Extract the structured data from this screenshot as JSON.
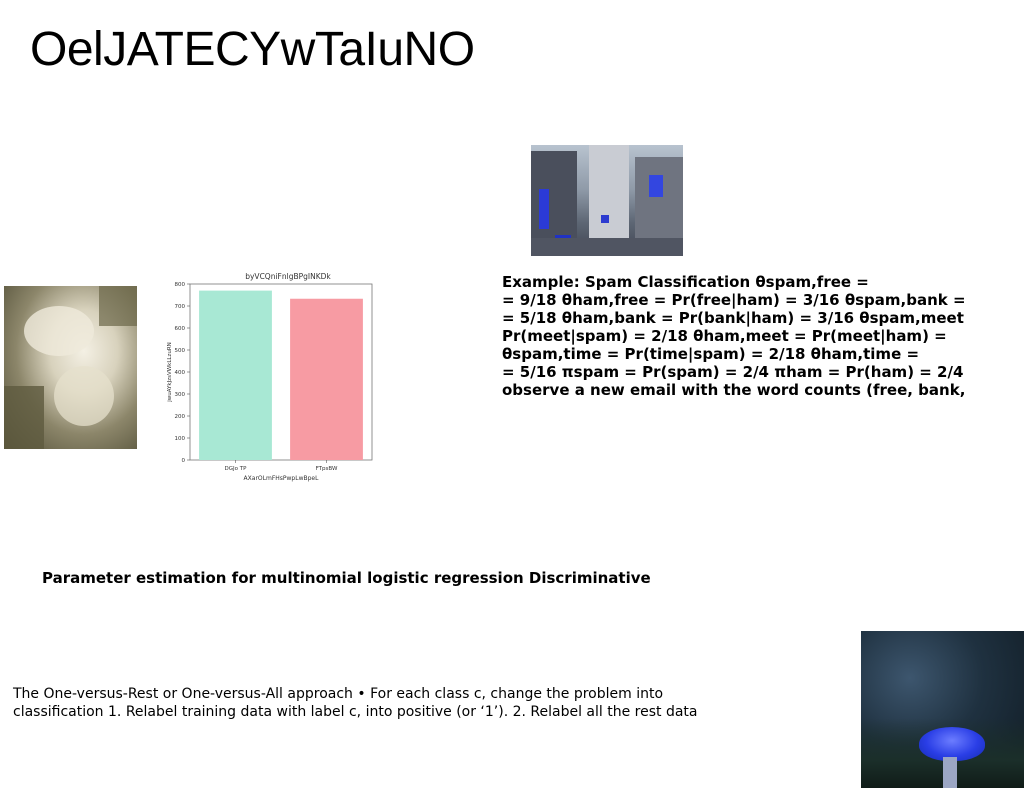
{
  "slide": {
    "title": "OelJATECYwTaIuNO"
  },
  "images": {
    "street": "street-photo",
    "water": "water-photo",
    "mushroom": "mushroom-photo"
  },
  "example_text": "Example: Spam Classification θspam,free =\n= 9/18 θham,free = Pr(free|ham) = 3/16 θspam,bank =\n= 5/18 θham,bank = Pr(bank|ham) = 3/16 θspam,meet\nPr(meet|spam) = 2/18 θham,meet = Pr(meet|ham) =\nθspam,time = Pr(time|spam) = 2/18 θham,time =\n= 5/16 πspam = Pr(spam) = 2/4 πham = Pr(ham) = 2/4\nobserve a new email with the word counts (free, bank,",
  "param_heading": "Parameter estimation for multinomial logistic regression Discriminative",
  "ovr_text": "The One-versus-Rest or One-versus-All approach • For each class c, change the problem into\nclassification 1. Relabel training data with label c, into positive (or ‘1’). 2. Relabel all the rest data",
  "chart_data": {
    "type": "bar",
    "title": "byVCQniFnlgBPgINKDk",
    "xlabel": "AXarOLmFHsPwpLwBpeL",
    "ylabel": "jwuAYkJzsVWkLLzuRN",
    "categories": [
      "DGJo TP",
      "FTpsBW"
    ],
    "values": [
      770,
      733
    ],
    "colors": [
      "#a8e8d4",
      "#f79ba3"
    ],
    "ylim": [
      0,
      800
    ],
    "yticks": [
      0,
      100,
      200,
      300,
      400,
      500,
      600,
      700,
      800
    ],
    "grid": false
  }
}
